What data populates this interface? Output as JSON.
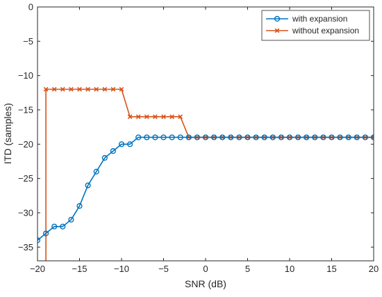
{
  "chart_data": {
    "type": "line",
    "xlabel": "SNR (dB)",
    "ylabel": "ITD (samples)",
    "xlim": [
      -20,
      20
    ],
    "ylim": [
      -37,
      0
    ],
    "xticks": [
      -20,
      -15,
      -10,
      -5,
      0,
      5,
      10,
      15,
      20
    ],
    "yticks": [
      0,
      -5,
      -10,
      -15,
      -20,
      -25,
      -30,
      -35
    ],
    "xtick_labels": [
      "−20",
      "−15",
      "−10",
      "−5",
      "0",
      "5",
      "10",
      "15",
      "20"
    ],
    "ytick_labels": [
      "0",
      "−5",
      "−10",
      "−15",
      "−20",
      "−25",
      "−30",
      "−35"
    ],
    "legend_position": "top-right",
    "grid": false,
    "series": [
      {
        "name": "with expansion",
        "color": "#0072BD",
        "marker": "circle",
        "x": [
          -20,
          -19,
          -18,
          -17,
          -16,
          -15,
          -14,
          -13,
          -12,
          -11,
          -10,
          -9,
          -8,
          -7,
          -6,
          -5,
          -4,
          -3,
          -2,
          -1,
          0,
          1,
          2,
          3,
          4,
          5,
          6,
          7,
          8,
          9,
          10,
          11,
          12,
          13,
          14,
          15,
          16,
          17,
          18,
          19,
          20
        ],
        "y": [
          -34,
          -33,
          -32,
          -32,
          -31,
          -29,
          -26,
          -24,
          -22,
          -21,
          -20,
          -20,
          -19,
          -19,
          -19,
          -19,
          -19,
          -19,
          -19,
          -19,
          -19,
          -19,
          -19,
          -19,
          -19,
          -19,
          -19,
          -19,
          -19,
          -19,
          -19,
          -19,
          -19,
          -19,
          -19,
          -19,
          -19,
          -19,
          -19,
          -19,
          -19
        ]
      },
      {
        "name": "without expansion",
        "color": "#D95319",
        "marker": "x",
        "x": [
          -19,
          -19,
          -18,
          -17,
          -16,
          -15,
          -14,
          -13,
          -12,
          -11,
          -10,
          -9,
          -8,
          -7,
          -6,
          -5,
          -4,
          -3,
          -2,
          -1,
          0,
          1,
          2,
          3,
          4,
          5,
          6,
          7,
          8,
          9,
          10,
          11,
          12,
          13,
          14,
          15,
          16,
          17,
          18,
          19,
          20
        ],
        "y": [
          -37,
          -12,
          -12,
          -12,
          -12,
          -12,
          -12,
          -12,
          -12,
          -12,
          -12,
          -16,
          -16,
          -16,
          -16,
          -16,
          -16,
          -16,
          -19,
          -19,
          -19,
          -19,
          -19,
          -19,
          -19,
          -19,
          -19,
          -19,
          -19,
          -19,
          -19,
          -19,
          -19,
          -19,
          -19,
          -19,
          -19,
          -19,
          -19,
          -19,
          -19
        ],
        "marker_skip": [
          0
        ]
      }
    ]
  }
}
